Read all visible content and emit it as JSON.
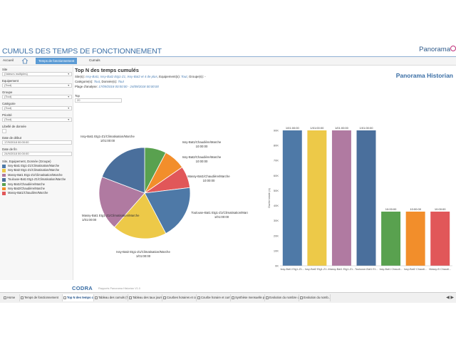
{
  "header": {
    "title": "CUMULS DES TEMPS DE FONCTIONNEMENT",
    "brand": "Panorama",
    "subtitle": "Panorama Historian"
  },
  "breadcrumb": {
    "home": "Accueil",
    "active": "Temps de fonctionnement",
    "current": "Cumuls"
  },
  "sidebar": {
    "filters": [
      {
        "label": "Site",
        "value": "(Valeurs multiples)"
      },
      {
        "label": "Equipement",
        "value": "(Tout)"
      },
      {
        "label": "Groupe",
        "value": "(Tout)"
      },
      {
        "label": "Catégorie",
        "value": "(Tout)"
      },
      {
        "label": "Priorité",
        "value": "(Tout)"
      }
    ],
    "libelle_label": "Libellé de donnée",
    "date_debut_label": "Date de début",
    "date_debut": "17/9/2018 00:00:00",
    "date_fin_label": "Date de fin",
    "date_fin": "24/9/2018 00:00:00",
    "legend_title": "Site, Equipement, Donnée (Groupe)",
    "legend": [
      {
        "label": "Issy-Bat1 Etg1-Z1/Climatisation/Marche",
        "color": "#4e79a7"
      },
      {
        "label": "Issy-Bat2 Etg1-Z1/Climatisation/Marche",
        "color": "#edc948"
      },
      {
        "label": "Massy-Bat1 Etg1-Z1/Climatisation/Marche",
        "color": "#b07aa1"
      },
      {
        "label": "Toulouse-Bat1 Etg1-Z1/Climatisation/Marche",
        "color": "#4a6f9c"
      },
      {
        "label": "Issy-Bat1/Chaudière/Marche",
        "color": "#59a14f"
      },
      {
        "label": "Issy-Bat2/Chaudière/Marche",
        "color": "#f28e2b"
      },
      {
        "label": "Massy-Bat1/Chaudière/Marche",
        "color": "#e15759"
      }
    ]
  },
  "main": {
    "title": "Top N des temps cumulés",
    "site_label": "Site(s):",
    "site_value": "Issy-Bat1, Issy-Bat2 Etg1-Z1, Issy-Bat2 et 4 de plus",
    "equip_label": "Equipement(s):",
    "equip_value": "Tout",
    "groupe_label": "Groupe(s): -",
    "cat_label": "Catégorie(s):",
    "cat_value": "Tout",
    "donnee_label": "Donnée(s):",
    "donnee_value": "Tout",
    "plage_label": "Plage d'analyse:",
    "plage_value": "17/09/2018 00:00:00 - 24/09/2018 00:00:00",
    "top_label": "Top",
    "top_value": "20"
  },
  "chart_data": [
    {
      "type": "pie",
      "slice_labels": [
        {
          "name": "Issy-Bat1/Chaudière/Marche",
          "value": "10:00:00",
          "color": "#59a14f"
        },
        {
          "name": "Issy-Bat2/Chaudière/Marche",
          "value": "10:00:00",
          "color": "#f28e2b"
        },
        {
          "name": "Massy-Bat1/Chaudière/Marche",
          "value": "10:00:00",
          "color": "#e15759"
        },
        {
          "name": "Issy-Bat1 Etg1-Z1/Climatisation/Marche",
          "value": "1/01:00:00",
          "color": "#4e79a7"
        },
        {
          "name": "Issy-Bat2 Etg1-Z1/Climatisation/Marche",
          "value": "1/01:00:00",
          "color": "#edc948"
        },
        {
          "name": "Massy-Bat1 Etg1-Z1/Climatisation/Marche",
          "value": "1/01:00:00",
          "color": "#b07aa1"
        },
        {
          "name": "Toulouse-Bat1 Etg1-Z1/Climatisation/Marche",
          "value": "1/01:00:00",
          "color": "#4a6f9c"
        }
      ],
      "values_hours": [
        10,
        10,
        10,
        25,
        25,
        25,
        25
      ]
    },
    {
      "type": "bar",
      "ylabel": "Durée totale (s)",
      "categories": [
        "Issy-Bat1 Etg1-Z1...",
        "Issy-Bat2 Etg1-Z1...",
        "Massy-Bat1 Etg1-Z1...",
        "Toulouse-Bat1 Et...",
        "Issy-Bat1 Chaudi...",
        "Issy-Bat2 Chaudi...",
        "Massy-B Chaudi..."
      ],
      "values_hours": [
        25,
        25,
        25,
        25,
        10,
        10,
        10
      ],
      "value_labels": [
        "1/01:00:00",
        "1/01:00:00",
        "1/01:00:00",
        "1/01:00:00",
        "10:00:00",
        "10:00:00",
        "10:00:00"
      ],
      "colors": [
        "#4e79a7",
        "#edc948",
        "#b07aa1",
        "#4a6f9c",
        "#59a14f",
        "#f28e2b",
        "#e15759"
      ],
      "yticks": [
        "90K",
        "80K",
        "70K",
        "60K",
        "50K",
        "40K",
        "30K",
        "20K",
        "10K",
        "0K"
      ],
      "ylim": [
        0,
        90000
      ]
    }
  ],
  "footer": {
    "codra": "CODRA",
    "rapports": "Rapports Panorama Historian V1.0"
  },
  "tabs": [
    "Home",
    "Temps de fonctionnement",
    "Top N des temps cumulés (Ca...",
    "Tableau des cumuls (Top fon...",
    "Tableau des taux journaliers ...",
    "Courbes horaires et cumuls (...",
    "Courbe horaire et cumul jour...",
    "Synthèse mensuelle par caté...",
    "Evolution du nombre de mar...",
    "Evolution du nomb..."
  ]
}
